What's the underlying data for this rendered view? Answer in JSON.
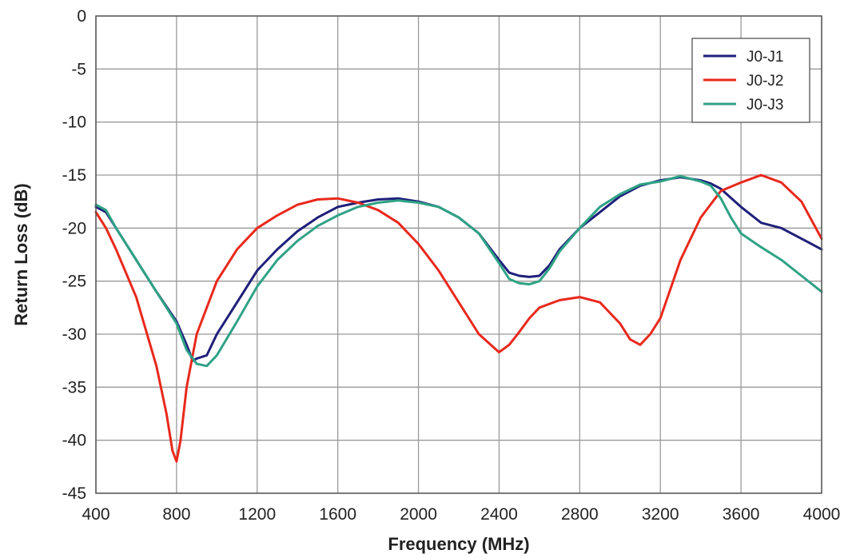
{
  "chart_data": {
    "type": "line",
    "title": "",
    "xlabel": "Frequency (MHz)",
    "ylabel": "Return Loss (dB)",
    "xlim": [
      400,
      4000
    ],
    "ylim": [
      -45,
      0
    ],
    "xticks": [
      400,
      800,
      1200,
      1600,
      2000,
      2400,
      2800,
      3200,
      3600,
      4000
    ],
    "yticks": [
      0,
      -5,
      -10,
      -15,
      -20,
      -25,
      -30,
      -35,
      -40,
      -45
    ],
    "grid": true,
    "legend_position": "top-right",
    "series": [
      {
        "name": "J0-J1",
        "color": "#1f1f7a",
        "x": [
          400,
          450,
          500,
          600,
          700,
          800,
          850,
          880,
          900,
          950,
          1000,
          1100,
          1200,
          1300,
          1400,
          1500,
          1600,
          1700,
          1800,
          1900,
          2000,
          2100,
          2200,
          2300,
          2400,
          2450,
          2500,
          2550,
          2600,
          2650,
          2700,
          2800,
          2900,
          3000,
          3100,
          3200,
          3300,
          3400,
          3450,
          3500,
          3600,
          3700,
          3800,
          3900,
          4000
        ],
        "y": [
          -18.0,
          -18.5,
          -20.0,
          -23.0,
          -26.0,
          -28.8,
          -31.0,
          -32.5,
          -32.3,
          -32.0,
          -30.0,
          -27.0,
          -24.0,
          -22.0,
          -20.3,
          -19.0,
          -18.0,
          -17.6,
          -17.3,
          -17.2,
          -17.5,
          -18.0,
          -19.0,
          -20.5,
          -23.0,
          -24.2,
          -24.5,
          -24.6,
          -24.5,
          -23.5,
          -22.0,
          -20.0,
          -18.5,
          -17.0,
          -16.0,
          -15.5,
          -15.2,
          -15.5,
          -15.8,
          -16.3,
          -18.0,
          -19.5,
          -20.0,
          -21.0,
          -22.0
        ]
      },
      {
        "name": "J0-J2",
        "color": "#e8291c",
        "x": [
          400,
          450,
          500,
          600,
          700,
          750,
          780,
          800,
          820,
          850,
          900,
          1000,
          1100,
          1200,
          1300,
          1400,
          1500,
          1600,
          1700,
          1800,
          1900,
          2000,
          2100,
          2200,
          2300,
          2400,
          2450,
          2500,
          2550,
          2600,
          2700,
          2800,
          2900,
          3000,
          3050,
          3100,
          3150,
          3200,
          3300,
          3400,
          3500,
          3600,
          3700,
          3800,
          3900,
          4000
        ],
        "y": [
          -18.5,
          -20.0,
          -22.0,
          -26.5,
          -33.0,
          -37.5,
          -41.0,
          -42.0,
          -40.0,
          -35.0,
          -30.0,
          -25.0,
          -22.0,
          -20.0,
          -18.8,
          -17.8,
          -17.3,
          -17.2,
          -17.6,
          -18.3,
          -19.5,
          -21.5,
          -24.0,
          -27.0,
          -30.0,
          -31.7,
          -31.0,
          -29.8,
          -28.5,
          -27.5,
          -26.8,
          -26.5,
          -27.0,
          -29.0,
          -30.5,
          -31.0,
          -30.0,
          -28.5,
          -23.0,
          -19.0,
          -16.5,
          -15.7,
          -15.0,
          -15.7,
          -17.5,
          -21.0
        ]
      },
      {
        "name": "J0-J3",
        "color": "#2fa285",
        "x": [
          400,
          450,
          500,
          600,
          700,
          800,
          850,
          900,
          950,
          1000,
          1100,
          1200,
          1300,
          1400,
          1500,
          1600,
          1700,
          1800,
          1900,
          2000,
          2100,
          2200,
          2300,
          2400,
          2450,
          2500,
          2550,
          2600,
          2650,
          2700,
          2800,
          2900,
          3000,
          3100,
          3200,
          3300,
          3400,
          3450,
          3500,
          3550,
          3600,
          3700,
          3800,
          3900,
          4000
        ],
        "y": [
          -17.8,
          -18.3,
          -20.0,
          -23.0,
          -26.0,
          -29.0,
          -31.5,
          -32.8,
          -33.0,
          -32.0,
          -28.8,
          -25.5,
          -23.0,
          -21.2,
          -19.8,
          -18.8,
          -18.0,
          -17.6,
          -17.4,
          -17.6,
          -18.0,
          -19.0,
          -20.5,
          -23.3,
          -24.8,
          -25.2,
          -25.3,
          -25.0,
          -23.8,
          -22.2,
          -20.0,
          -18.0,
          -16.8,
          -15.9,
          -15.6,
          -15.1,
          -15.6,
          -16.0,
          -17.2,
          -19.0,
          -20.5,
          -21.8,
          -23.0,
          -24.5,
          -26.0
        ]
      }
    ]
  }
}
